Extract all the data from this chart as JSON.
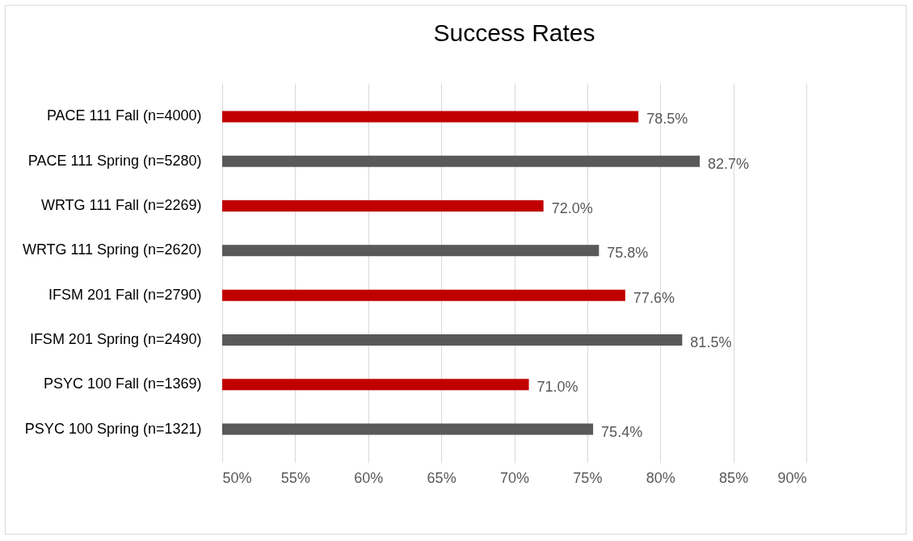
{
  "chart_data": {
    "type": "bar",
    "orientation": "horizontal",
    "title": "Success Rates",
    "categories": [
      "PACE 111 Fall (n=4000)",
      "PACE 111 Spring (n=5280)",
      "WRTG 111 Fall (n=2269)",
      "WRTG 111 Spring (n=2620)",
      "IFSM 201 Fall (n=2790)",
      "IFSM 201 Spring (n=2490)",
      "PSYC 100 Fall (n=1369)",
      "PSYC 100 Spring (n=1321)"
    ],
    "values": [
      78.5,
      82.7,
      72.0,
      75.8,
      77.6,
      81.5,
      71.0,
      75.4
    ],
    "value_labels": [
      "78.5%",
      "82.7%",
      "72.0%",
      "75.8%",
      "77.6%",
      "81.5%",
      "71.0%",
      "75.4%"
    ],
    "colors": [
      "#c00000",
      "#595959",
      "#c00000",
      "#595959",
      "#c00000",
      "#595959",
      "#c00000",
      "#595959"
    ],
    "xlim": [
      50,
      90
    ],
    "xticks": [
      {
        "value": 50,
        "label": "50%"
      },
      {
        "value": 55,
        "label": "55%"
      },
      {
        "value": 60,
        "label": "60%"
      },
      {
        "value": 65,
        "label": "65%"
      },
      {
        "value": 70,
        "label": "70%"
      },
      {
        "value": 75,
        "label": "75%"
      },
      {
        "value": 80,
        "label": "80%"
      },
      {
        "value": 85,
        "label": "85%"
      },
      {
        "value": 90,
        "label": "90%"
      }
    ],
    "grid": "x"
  }
}
